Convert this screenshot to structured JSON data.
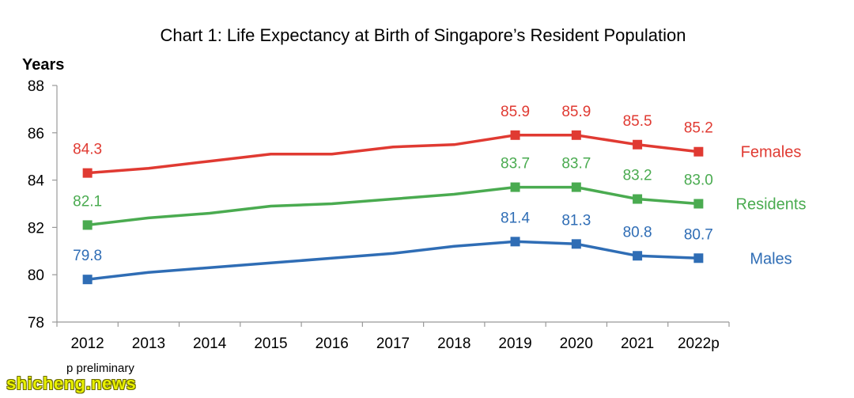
{
  "chart_data": {
    "type": "line",
    "title": "Chart 1: Life Expectancy at Birth of Singapore’s Resident Population",
    "ylabel": "Years",
    "xlabel": "",
    "ylim": [
      78,
      88
    ],
    "yticks": [
      78,
      80,
      82,
      84,
      86,
      88
    ],
    "categories": [
      "2012",
      "2013",
      "2014",
      "2015",
      "2016",
      "2017",
      "2018",
      "2019",
      "2020",
      "2021",
      "2022p"
    ],
    "legend_placement": "right-of-line-ends",
    "grid": false,
    "series": [
      {
        "name": "Females",
        "color": "#e03a32",
        "values": [
          84.3,
          84.5,
          84.8,
          85.1,
          85.1,
          85.4,
          85.5,
          85.9,
          85.9,
          85.5,
          85.2
        ],
        "labels": [
          "84.3",
          "",
          "",
          "",
          "",
          "",
          "",
          "85.9",
          "85.9",
          "85.5",
          "85.2"
        ]
      },
      {
        "name": "Residents",
        "color": "#4aab50",
        "values": [
          82.1,
          82.4,
          82.6,
          82.9,
          83.0,
          83.2,
          83.4,
          83.7,
          83.7,
          83.2,
          83.0
        ],
        "labels": [
          "82.1",
          "",
          "",
          "",
          "",
          "",
          "",
          "83.7",
          "83.7",
          "83.2",
          "83.0"
        ]
      },
      {
        "name": "Males",
        "color": "#2f6db5",
        "values": [
          79.8,
          80.1,
          80.3,
          80.5,
          80.7,
          80.9,
          81.2,
          81.4,
          81.3,
          80.8,
          80.7
        ],
        "labels": [
          "79.8",
          "",
          "",
          "",
          "",
          "",
          "",
          "81.4",
          "81.3",
          "80.8",
          "80.7"
        ]
      }
    ],
    "marker_shape": "square"
  },
  "footnote": "p  preliminary",
  "watermark": "shicheng.news"
}
